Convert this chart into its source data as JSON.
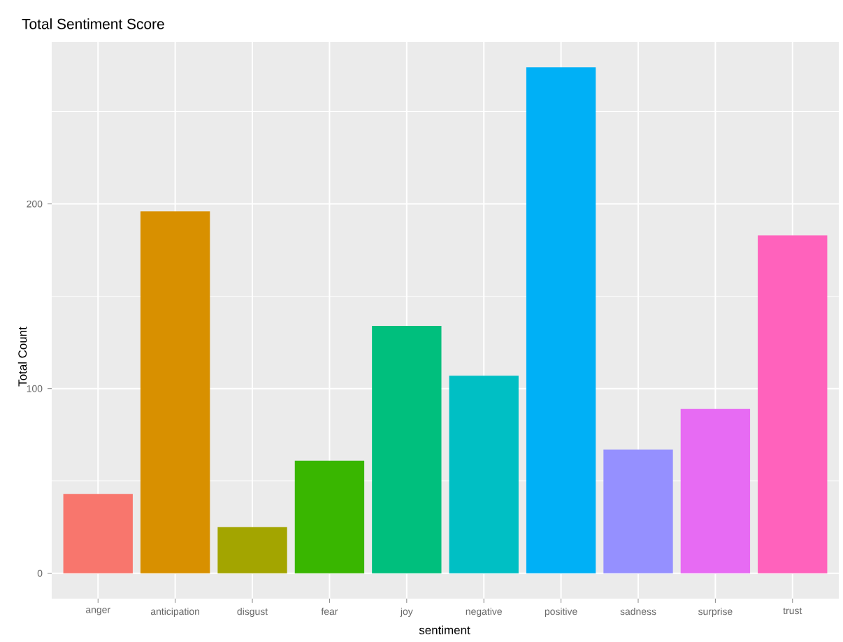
{
  "chart_data": {
    "type": "bar",
    "title": "Total Sentiment Score",
    "xlabel": "sentiment",
    "ylabel": "Total Count",
    "categories": [
      "anger",
      "anticipation",
      "disgust",
      "fear",
      "joy",
      "negative",
      "positive",
      "sadness",
      "surprise",
      "trust"
    ],
    "values": [
      43,
      196,
      25,
      61,
      134,
      107,
      274,
      67,
      89,
      183
    ],
    "colors": [
      "#f8766d",
      "#d89000",
      "#a3a500",
      "#39b600",
      "#00bf7d",
      "#00bfc4",
      "#00b0f6",
      "#9590ff",
      "#e76bf3",
      "#ff62bc"
    ],
    "ylim": [
      -13.7,
      287.7
    ],
    "yticks": [
      0,
      {
        "value": 50,
        "label": null
      },
      100,
      {
        "value": 150,
        "label": null
      },
      200,
      {
        "value": 250,
        "label": null
      }
    ],
    "grid": true
  }
}
